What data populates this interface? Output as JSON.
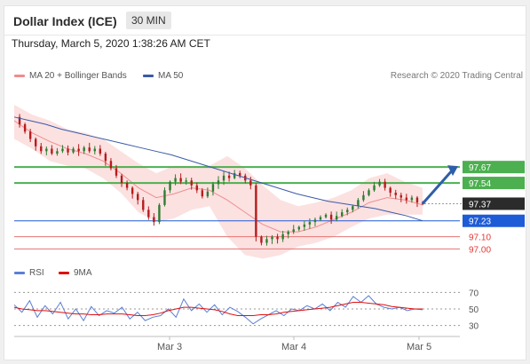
{
  "header": {
    "title": "Dollar Index (ICE)",
    "timeframe": "30 MIN"
  },
  "datetime": "Thursday, March 5, 2020 1:38:26 AM CET",
  "legend": {
    "bollinger": {
      "label": "MA 20 + Bollinger Bands",
      "color": "#f28b8b"
    },
    "ma50": {
      "label": "MA 50",
      "color": "#3a5aa8"
    },
    "rsi": {
      "label": "RSI",
      "color": "#5b7fd6"
    },
    "rsi9ma": {
      "label": "9MA",
      "color": "#e01010"
    },
    "credit": "Research © 2020 Trading Central"
  },
  "colors": {
    "up": "#2e7d32",
    "down": "#b71c1c",
    "green_level": "#4caf50",
    "blue_level": "#1e5bd6",
    "red_level": "#e57373",
    "dark_label": "#2b2b2b"
  },
  "chart_data": [
    {
      "type": "candlestick",
      "title": "Dollar Index (ICE) 30 MIN",
      "ylim": [
        96.93,
        98.18
      ],
      "x_ticks": [
        "Mar 3",
        "Mar 4",
        "Mar 5"
      ],
      "levels": [
        {
          "label": "97.67",
          "value": 97.67,
          "color": "#4caf50"
        },
        {
          "label": "97.54",
          "value": 97.54,
          "color": "#4caf50"
        },
        {
          "label": "97.37",
          "value": 97.37,
          "color": "#2b2b2b"
        },
        {
          "label": "97.23",
          "value": 97.23,
          "color": "#1e5bd6"
        },
        {
          "label": "97.10",
          "value": 97.1,
          "color": "#e57373"
        },
        {
          "label": "97.00",
          "value": 97.0,
          "color": "#e57373"
        }
      ],
      "close_path": [
        98.08,
        98.02,
        97.96,
        97.9,
        97.84,
        97.8,
        97.82,
        97.78,
        97.8,
        97.82,
        97.79,
        97.82,
        97.8,
        97.83,
        97.8,
        97.82,
        97.78,
        97.72,
        97.66,
        97.6,
        97.54,
        97.5,
        97.45,
        97.4,
        97.32,
        97.26,
        97.22,
        97.36,
        97.48,
        97.55,
        97.58,
        97.55,
        97.56,
        97.52,
        97.48,
        97.43,
        97.47,
        97.53,
        97.56,
        97.6,
        97.58,
        97.62,
        97.6,
        97.56,
        97.52,
        97.1,
        97.05,
        97.08,
        97.1,
        97.08,
        97.12,
        97.14,
        97.16,
        97.18,
        97.2,
        97.22,
        97.24,
        97.26,
        97.28,
        97.24,
        97.27,
        97.3,
        97.32,
        97.35,
        97.4,
        97.44,
        97.48,
        97.52,
        97.55,
        97.5,
        97.46,
        97.44,
        97.42,
        97.4,
        97.42,
        97.38,
        97.37
      ],
      "ma50": [
        98.08,
        98.05,
        98.02,
        97.98,
        97.95,
        97.92,
        97.89,
        97.86,
        97.83,
        97.8,
        97.77,
        97.73,
        97.69,
        97.65,
        97.61,
        97.57,
        97.53,
        97.49,
        97.45,
        97.42,
        97.39,
        97.37,
        97.35,
        97.33,
        97.3,
        97.27,
        97.23
      ],
      "bb_mid": [
        98.05,
        97.95,
        97.88,
        97.82,
        97.78,
        97.72,
        97.62,
        97.5,
        97.42,
        97.45,
        97.5,
        97.48,
        97.4,
        97.3,
        97.2,
        97.14,
        97.14,
        97.18,
        97.24,
        97.3,
        97.38,
        97.42,
        97.4,
        97.36
      ],
      "bb_upper": [
        98.18,
        98.1,
        98.05,
        97.98,
        97.95,
        97.9,
        97.8,
        97.7,
        97.62,
        97.68,
        97.68,
        97.68,
        97.76,
        97.66,
        97.52,
        97.4,
        97.35,
        97.38,
        97.42,
        97.48,
        97.58,
        97.62,
        97.55,
        97.5
      ],
      "bb_lower": [
        97.9,
        97.82,
        97.72,
        97.68,
        97.66,
        97.58,
        97.46,
        97.3,
        97.22,
        97.25,
        97.32,
        97.35,
        97.1,
        96.95,
        96.92,
        96.95,
        97.02,
        97.05,
        97.1,
        97.18,
        97.25,
        97.28,
        97.28,
        97.28
      ],
      "forecast_arrow": {
        "from": 97.37,
        "to": 97.67
      }
    },
    {
      "type": "line",
      "title": "RSI",
      "ylim": [
        20,
        80
      ],
      "y_ticks": [
        "70",
        "50",
        "30"
      ],
      "series": [
        {
          "name": "RSI",
          "values": [
            55,
            46,
            60,
            40,
            54,
            44,
            58,
            38,
            50,
            36,
            53,
            42,
            48,
            45,
            52,
            38,
            46,
            36,
            40,
            42,
            50,
            40,
            62,
            48,
            56,
            46,
            55,
            43,
            52,
            47,
            40,
            32,
            38,
            43,
            48,
            42,
            50,
            48,
            54,
            50,
            56,
            48,
            58,
            52,
            65,
            58,
            66,
            56,
            52,
            50,
            52,
            48,
            50,
            49
          ]
        },
        {
          "name": "9MA",
          "values": [
            52,
            50,
            49,
            48,
            48,
            47,
            46,
            45,
            44,
            44,
            43,
            43,
            44,
            44,
            44,
            43,
            42,
            42,
            43,
            45,
            48,
            50,
            52,
            52,
            51,
            50,
            49,
            47,
            44,
            42,
            42,
            42,
            43,
            43,
            44,
            46,
            47,
            48,
            49,
            50,
            51,
            52,
            54,
            56,
            58,
            58,
            57,
            56,
            55,
            53,
            52,
            51,
            50,
            50
          ]
        }
      ]
    }
  ]
}
